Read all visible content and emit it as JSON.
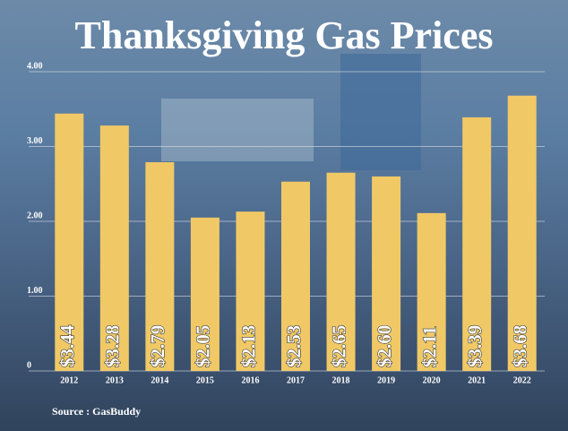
{
  "chart_data": {
    "type": "bar",
    "title": "Thanksgiving Gas Prices",
    "categories": [
      "2012",
      "2013",
      "2014",
      "2015",
      "2016",
      "2017",
      "2018",
      "2019",
      "2020",
      "2021",
      "2022"
    ],
    "values": [
      3.44,
      3.28,
      2.79,
      2.05,
      2.13,
      2.53,
      2.65,
      2.6,
      2.11,
      3.39,
      3.68
    ],
    "value_labels": [
      "$3.44",
      "$3.28",
      "$2.79",
      "$2.05",
      "$2.13",
      "$2.53",
      "$2.65",
      "$2.60",
      "$2.11",
      "$3.39",
      "$3.68"
    ],
    "color": "#f0c966",
    "ylim": [
      0,
      4
    ],
    "yticks": [
      0,
      {
        "value": 1,
        "label": "1.00"
      },
      {
        "value": 2,
        "label": "2.00"
      },
      {
        "value": 3,
        "label": "3.00"
      },
      {
        "value": 4,
        "label": "4.00"
      }
    ],
    "grid": true,
    "source": "Source : GasBuddy"
  }
}
